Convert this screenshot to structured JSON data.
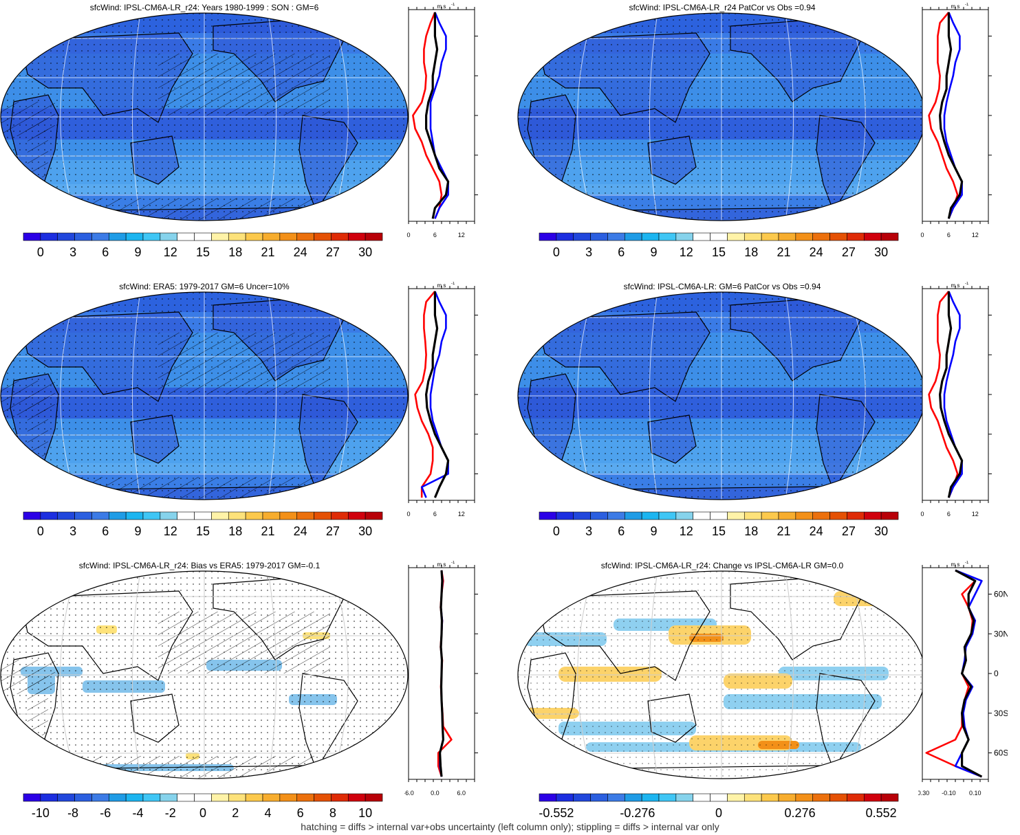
{
  "colors": {
    "full_palette": [
      "#2b00e6",
      "#1c2ee0",
      "#2147dc",
      "#2b5fe0",
      "#3c7be6",
      "#1f9ce6",
      "#1cb5f0",
      "#3fc6f5",
      "#86d3ec",
      "#ffffff",
      "#ffffff",
      "#fff3a8",
      "#fde27a",
      "#fcc94c",
      "#f7ad2e",
      "#f39018",
      "#ec700c",
      "#e55104",
      "#df2b06",
      "#d0000d",
      "#b80008"
    ],
    "ocean_base": "#3d8fe8",
    "land_base": "#2f55d6",
    "profile_model": "#ff0000",
    "profile_obs": "#0000ff",
    "profile_black": "#000000"
  },
  "footnote": "hatching = diffs > internal var+obs uncertainty (left column only); stippling = diffs > internal var only",
  "colorbars": {
    "full": [
      "0",
      "3",
      "6",
      "9",
      "12",
      "15",
      "18",
      "21",
      "24",
      "27",
      "30"
    ],
    "bias": [
      "-10",
      "-8",
      "-6",
      "-4",
      "-2",
      "0",
      "2",
      "4",
      "6",
      "8",
      "10"
    ],
    "change": [
      "-0.552",
      "-0.276",
      "0",
      "0.276",
      "0.552"
    ]
  },
  "profile_axis": {
    "unit": "m s",
    "unit_exp": "-1",
    "lat_labels": [
      "60N",
      "30N",
      "0",
      "30S",
      "60S"
    ],
    "x_ticks_full": [
      "0",
      "6",
      "12"
    ],
    "x_ticks_bias": [
      "-6.0",
      "0.0",
      "6.0"
    ],
    "x_ticks_change": [
      "-0.30",
      "-0.10",
      "0.10"
    ]
  },
  "panels": [
    {
      "id": "p1",
      "title": "sfcWind: IPSL-CM6A-LR_r24: Years 1980-1999 : SON : GM=6",
      "kind": "full",
      "hatch": true
    },
    {
      "id": "p2",
      "title": "sfcWind: IPSL-CM6A-LR_r24 PatCor vs Obs =0.94",
      "kind": "full",
      "hatch": false
    },
    {
      "id": "p3",
      "title": "sfcWind: ERA5: 1979-2017 GM=6 Uncer=10%",
      "kind": "full",
      "hatch": true
    },
    {
      "id": "p4",
      "title": "sfcWind: IPSL-CM6A-LR: GM=6 PatCor vs Obs =0.94",
      "kind": "full",
      "hatch": false
    },
    {
      "id": "p5",
      "title": "sfcWind: IPSL-CM6A-LR_r24: Bias vs ERA5: 1979-2017  GM=-0.1",
      "kind": "bias",
      "hatch": true
    },
    {
      "id": "p6",
      "title": "sfcWind: IPSL-CM6A-LR_r24: Change vs IPSL-CM6A-LR GM=0.0",
      "kind": "change",
      "hatch": false
    }
  ],
  "chart_data": [
    {
      "type": "line",
      "title": "sfcWind: IPSL-CM6A-LR_r24: Years 1980-1999 : SON : GM=6",
      "xlabel": "m s-1",
      "xlim": [
        0,
        15
      ],
      "ylim": [
        -80,
        80
      ],
      "y": [
        78,
        70,
        60,
        50,
        40,
        30,
        20,
        10,
        0,
        -10,
        -20,
        -30,
        -40,
        -50,
        -60,
        -70,
        -78
      ],
      "series": [
        {
          "values": [
            6,
            5,
            4,
            3.5,
            3.5,
            4,
            3.8,
            3,
            1,
            1.5,
            3,
            4,
            5.5,
            7,
            7.5,
            7,
            6
          ]
        },
        {
          "values": [
            6,
            7,
            8.5,
            8.5,
            7.5,
            7,
            6,
            5,
            5,
            5,
            5.5,
            6,
            7.5,
            9,
            9,
            7,
            6
          ]
        },
        {
          "values": [
            6,
            6,
            6,
            6.5,
            6,
            5.5,
            5.5,
            4.5,
            4,
            4,
            5,
            6,
            7,
            9,
            8.5,
            6,
            5.5
          ]
        }
      ]
    },
    {
      "type": "line",
      "title": "sfcWind: IPSL-CM6A-LR_r24 PatCor vs Obs =0.94",
      "xlabel": "m s-1",
      "xlim": [
        0,
        15
      ],
      "ylim": [
        -80,
        80
      ],
      "y": [
        78,
        70,
        60,
        50,
        40,
        30,
        20,
        10,
        0,
        -10,
        -20,
        -30,
        -40,
        -50,
        -60,
        -70,
        -78
      ],
      "series": [
        {
          "values": [
            6,
            4,
            3.5,
            3.5,
            3.5,
            4,
            3.8,
            3,
            1.5,
            2,
            3.5,
            4.5,
            5.5,
            7,
            8,
            7,
            6
          ]
        },
        {
          "values": [
            6,
            7,
            8.5,
            8.5,
            7.5,
            7,
            6.2,
            5.5,
            5,
            5,
            5.5,
            6.5,
            7.5,
            9,
            9,
            7,
            6
          ]
        },
        {
          "values": [
            6,
            6,
            6,
            6.5,
            6,
            5.5,
            5.5,
            4.5,
            4,
            4.2,
            5,
            6,
            7.5,
            9,
            8.5,
            6.5,
            6
          ]
        }
      ]
    },
    {
      "type": "line",
      "title": "sfcWind: ERA5: 1979-2017 GM=6 Uncer=10%",
      "xlabel": "m s-1",
      "xlim": [
        0,
        15
      ],
      "ylim": [
        -80,
        80
      ],
      "y": [
        78,
        70,
        60,
        50,
        40,
        30,
        20,
        10,
        0,
        -10,
        -20,
        -30,
        -40,
        -50,
        -60,
        -70,
        -78
      ],
      "series": [
        {
          "values": [
            6,
            4,
            3.5,
            3.5,
            3.8,
            4,
            3.8,
            3.2,
            1.5,
            2,
            3,
            4.5,
            5.5,
            5.5,
            5,
            3,
            3
          ]
        },
        {
          "values": [
            6,
            7,
            8.5,
            8.5,
            7.5,
            7,
            6,
            5.5,
            5,
            5,
            5.5,
            6.5,
            7.5,
            9,
            9,
            3,
            4
          ]
        },
        {
          "values": [
            6,
            6,
            6,
            6.5,
            6,
            5.5,
            5.5,
            4.5,
            4,
            4.2,
            5,
            6,
            7.5,
            9,
            8.5,
            7,
            6
          ]
        }
      ]
    },
    {
      "type": "line",
      "title": "sfcWind: IPSL-CM6A-LR: GM=6 PatCor vs Obs =0.94",
      "xlabel": "m s-1",
      "xlim": [
        0,
        15
      ],
      "ylim": [
        -80,
        80
      ],
      "y": [
        78,
        70,
        60,
        50,
        40,
        30,
        20,
        10,
        0,
        -10,
        -20,
        -30,
        -40,
        -50,
        -60,
        -70,
        -78
      ],
      "series": [
        {
          "values": [
            6,
            4,
            3.5,
            3.5,
            3.5,
            4,
            3.8,
            3,
            1.5,
            2,
            3.5,
            4.5,
            5.5,
            7,
            8,
            7,
            6
          ]
        },
        {
          "values": [
            6,
            7,
            8.5,
            8.5,
            7.5,
            7,
            6.2,
            5.5,
            5,
            5,
            5.5,
            6.5,
            7.5,
            9,
            9,
            7,
            6
          ]
        },
        {
          "values": [
            6,
            6,
            6,
            6.5,
            6,
            5.5,
            5.5,
            4.5,
            4,
            4.2,
            5,
            6,
            7.5,
            9,
            8.5,
            6.5,
            6
          ]
        }
      ]
    },
    {
      "type": "line",
      "title": "sfcWind: IPSL-CM6A-LR_r24: Bias vs ERA5: 1979-2017  GM=-0.1",
      "xlabel": "m s-1",
      "xlim": [
        -10,
        10
      ],
      "ylim": [
        -80,
        80
      ],
      "y": [
        78,
        70,
        60,
        50,
        40,
        30,
        20,
        10,
        0,
        -10,
        -20,
        -30,
        -40,
        -50,
        -60,
        -70,
        -78
      ],
      "series": [
        {
          "values": [
            0,
            0.5,
            0,
            -0.3,
            0.2,
            0,
            -0.3,
            0.2,
            0,
            -0.2,
            0,
            0.3,
            0.5,
            3,
            -1,
            -1,
            0
          ]
        },
        {
          "values": [
            0,
            0.3,
            0,
            -0.2,
            0.2,
            0,
            -0.2,
            0.1,
            0,
            -0.1,
            0,
            0.2,
            0.3,
            0.5,
            -0.5,
            -0.5,
            0
          ]
        },
        {
          "values": [
            0,
            0.2,
            0,
            -0.2,
            0.1,
            0,
            -0.2,
            0.1,
            0,
            -0.1,
            0,
            0.2,
            0.3,
            0.5,
            -0.5,
            -0.3,
            0
          ]
        }
      ]
    },
    {
      "type": "line",
      "title": "sfcWind: IPSL-CM6A-LR_r24: Change vs IPSL-CM6A-LR GM=0.0",
      "xlabel": "m s-1",
      "xlim": [
        -0.35,
        0.15
      ],
      "ylim": [
        -80,
        80
      ],
      "y": [
        78,
        70,
        60,
        50,
        40,
        30,
        20,
        10,
        0,
        -10,
        -20,
        -30,
        -40,
        -50,
        -60,
        -70,
        -78
      ],
      "series": [
        {
          "values": [
            -0.1,
            0.05,
            -0.05,
            0,
            0.03,
            0.02,
            -0.03,
            -0.02,
            -0.05,
            0,
            -0.03,
            -0.05,
            -0.05,
            -0.1,
            -0.32,
            -0.1,
            0.1
          ]
        },
        {
          "values": [
            -0.1,
            0.1,
            0.05,
            0,
            0.05,
            0.03,
            -0.02,
            -0.03,
            -0.05,
            0.03,
            -0.02,
            -0.04,
            -0.03,
            0,
            -0.05,
            -0.1,
            0.1
          ]
        },
        {
          "values": [
            -0.1,
            0.05,
            0,
            0,
            0.04,
            0.02,
            -0.03,
            -0.02,
            -0.05,
            0.02,
            -0.03,
            -0.05,
            -0.04,
            0,
            -0.05,
            -0.05,
            0.1
          ]
        }
      ]
    }
  ]
}
